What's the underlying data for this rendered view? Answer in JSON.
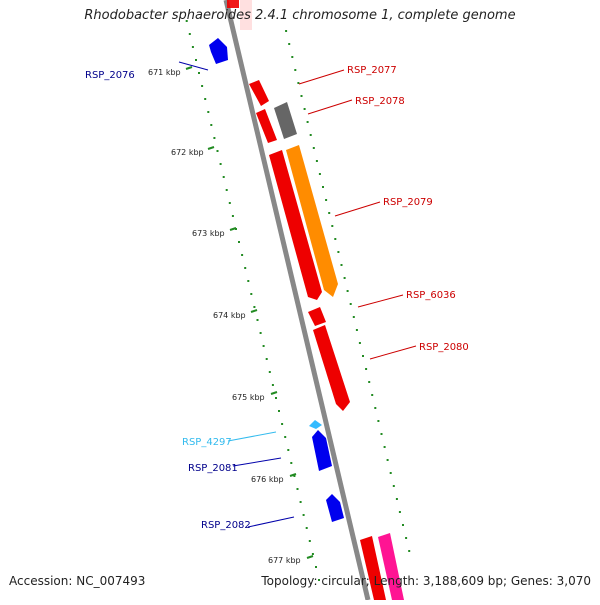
{
  "header": {
    "title": "Rhodobacter sphaeroides 2.4.1 chromosome 1, complete genome"
  },
  "footer": {
    "accession": "Accession: NC_007493",
    "summary": "Topology: circular; Length: 3,188,609 bp; Genes: 3,070"
  },
  "scale": {
    "ticks": [
      "671 kbp",
      "672 kbp",
      "673 kbp",
      "674 kbp",
      "675 kbp",
      "676 kbp",
      "677 kbp"
    ]
  },
  "genes": [
    {
      "name": "RSP_2076",
      "label": "RSP_2076",
      "color": "#0000ee",
      "label_color": "#00008b",
      "strand": "reverse"
    },
    {
      "name": "RSP_2077",
      "label": "RSP_2077",
      "color": "#ee0000",
      "label_color": "#cc0000",
      "strand": "forward"
    },
    {
      "name": "RSP_2078",
      "label": "RSP_2078",
      "color": "#666666",
      "label_color": "#cc0000",
      "strand": "forward"
    },
    {
      "name": "RSP_2079",
      "label": "RSP_2079",
      "color": "#ff8c00",
      "label_color": "#cc0000",
      "strand": "forward"
    },
    {
      "name": "RSP_6036",
      "label": "RSP_6036",
      "color": "#ee0000",
      "label_color": "#cc0000",
      "strand": "forward"
    },
    {
      "name": "RSP_2080",
      "label": "RSP_2080",
      "color": "#ee0000",
      "label_color": "#cc0000",
      "strand": "forward"
    },
    {
      "name": "RSP_4297",
      "label": "RSP_4297",
      "color": "#33bbff",
      "label_color": "#33bbee",
      "strand": "reverse"
    },
    {
      "name": "RSP_2081",
      "label": "RSP_2081",
      "color": "#0000ee",
      "label_color": "#00008b",
      "strand": "reverse"
    },
    {
      "name": "RSP_2082",
      "label": "RSP_2082",
      "color": "#0000ee",
      "label_color": "#00008b",
      "strand": "reverse"
    }
  ],
  "colors": {
    "backbone": "#888888",
    "gc_dots": "#228b22",
    "forward": "#ee0000",
    "reverse": "#0000ee"
  }
}
